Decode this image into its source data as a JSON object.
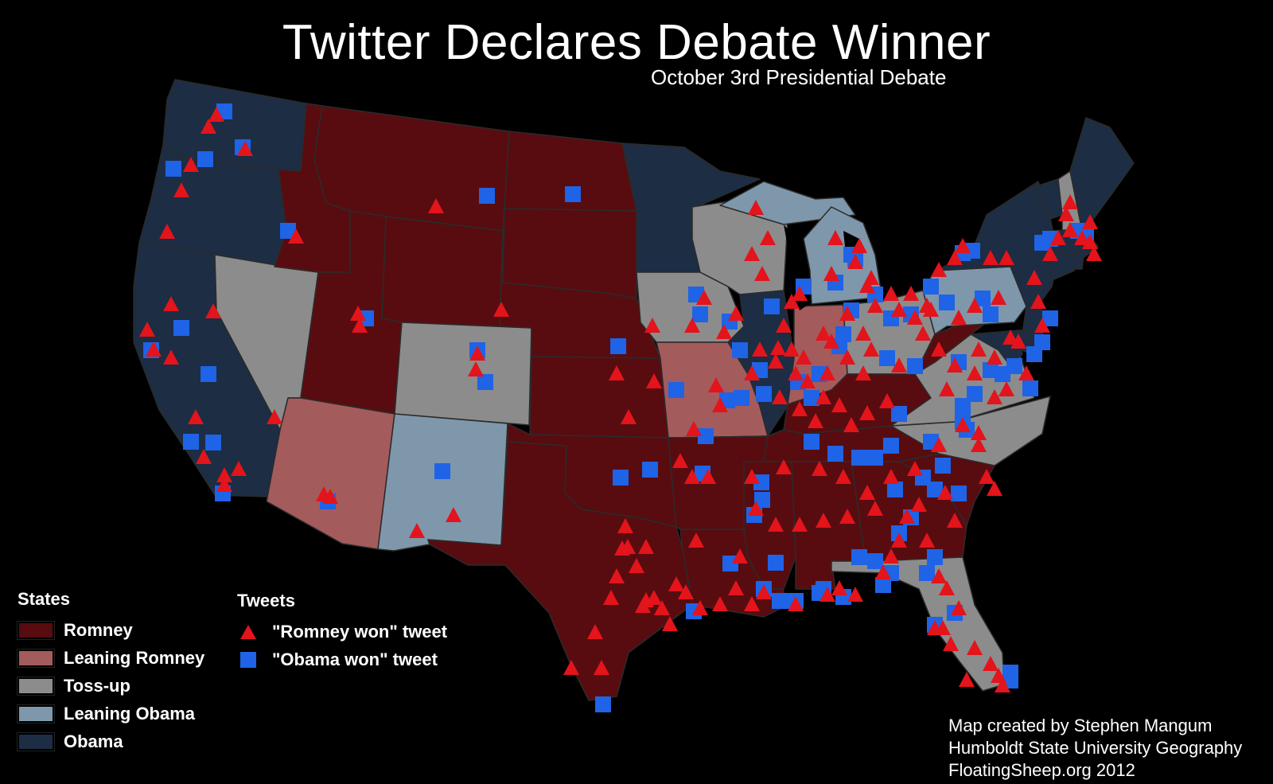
{
  "title": "Twitter Declares Debate Winner",
  "subtitle": "October 3rd Presidential Debate",
  "colors": {
    "background": "#000000",
    "romney": "#580c10",
    "leaning_romney": "#a45b5c",
    "toss_up": "#8c8c8c",
    "leaning_obama": "#7e97ab",
    "obama": "#1c2d44",
    "romney_tweet": "#e3141b",
    "obama_tweet": "#1f63e6",
    "state_border": "#2b2b2b"
  },
  "legend": {
    "states_heading": "States",
    "states": [
      {
        "label": "Romney",
        "color": "#580c10"
      },
      {
        "label": "Leaning Romney",
        "color": "#a45b5c"
      },
      {
        "label": "Toss-up",
        "color": "#8c8c8c"
      },
      {
        "label": "Leaning Obama",
        "color": "#7e97ab"
      },
      {
        "label": "Obama",
        "color": "#1c2d44"
      }
    ],
    "tweets_heading": "Tweets",
    "tweets": [
      {
        "label": "\"Romney won\" tweet",
        "symbol": "red-triangle"
      },
      {
        "label": "\"Obama won\" tweet",
        "symbol": "blue-square"
      }
    ]
  },
  "credits": [
    "Map created by Stephen Mangum",
    "Humboldt State University Geography",
    "FloatingSheep.org 2012"
  ],
  "state_categories": {
    "WA": "obama",
    "OR": "obama",
    "CA": "obama",
    "MN": "obama",
    "IL": "obama",
    "NY": "obama",
    "VT": "obama",
    "ME": "obama",
    "MA": "obama",
    "RI": "obama",
    "CT": "obama",
    "NJ": "obama",
    "DE": "obama",
    "MD": "obama",
    "MI": "leaning_obama",
    "PA": "leaning_obama",
    "NM": "leaning_obama",
    "NV": "toss_up",
    "CO": "toss_up",
    "IA": "toss_up",
    "WI": "toss_up",
    "OH": "toss_up",
    "VA": "toss_up",
    "NC": "toss_up",
    "FL": "toss_up",
    "NH": "toss_up",
    "AZ": "leaning_romney",
    "MO": "leaning_romney",
    "IN": "leaning_romney",
    "ID": "romney",
    "MT": "romney",
    "WY": "romney",
    "UT": "romney",
    "ND": "romney",
    "SD": "romney",
    "NE": "romney",
    "KS": "romney",
    "OK": "romney",
    "TX": "romney",
    "AR": "romney",
    "LA": "romney",
    "MS": "romney",
    "AL": "romney",
    "GA": "romney",
    "SC": "romney",
    "TN": "romney",
    "KY": "romney",
    "WV": "romney"
  }
}
